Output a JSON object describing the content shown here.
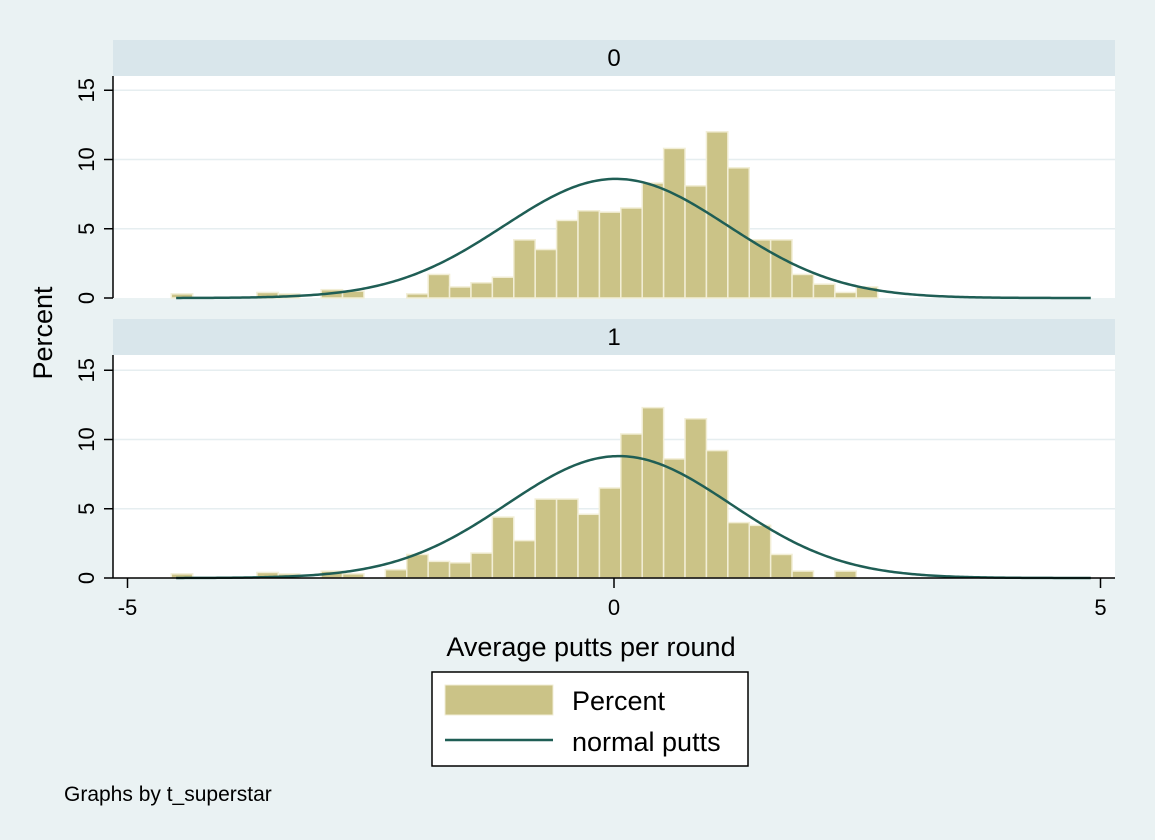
{
  "chart_data": {
    "type": "bar",
    "ylabel": "Percent",
    "xlabel": "Average putts per round",
    "note": "Graphs by t_superstar",
    "colors": {
      "bar_fill": "#cbc387",
      "bar_stroke": "#f2eed6",
      "curve": "#1f5e55",
      "strip": "#d9e6eb",
      "background": "#eaf2f3",
      "plot_bg": "#ffffff",
      "grid": "#e6eef0"
    },
    "xlim": [
      -5,
      5
    ],
    "ylim": [
      0,
      15
    ],
    "x_ticks": [
      -5,
      0,
      5
    ],
    "y_ticks": [
      0,
      5,
      10,
      15
    ],
    "bin_width": 0.22,
    "bin_start": -4.55,
    "legend": {
      "position": "bottom",
      "entries": [
        "Percent",
        "normal putts"
      ]
    },
    "panels": [
      {
        "label": "0",
        "percent": [
          0.3,
          0,
          0,
          0,
          0.4,
          0.3,
          0,
          0.6,
          0.5,
          0,
          0,
          0.3,
          1.7,
          0.8,
          1.1,
          1.5,
          4.2,
          3.5,
          5.6,
          6.3,
          6.2,
          6.5,
          8.3,
          10.8,
          8.1,
          12.0,
          9.4,
          4.2,
          4.2,
          1.7,
          1.0,
          0.4,
          0.8,
          0,
          0,
          0,
          0,
          0,
          0,
          0,
          0,
          0,
          0
        ],
        "normal": {
          "mean": 0.02,
          "sd": 1.15,
          "peak": 8.6
        }
      },
      {
        "label": "1",
        "percent": [
          0.3,
          0,
          0,
          0,
          0.4,
          0.3,
          0,
          0.5,
          0.3,
          0,
          0.6,
          1.7,
          1.2,
          1.1,
          1.8,
          4.4,
          2.7,
          5.7,
          5.7,
          4.6,
          6.5,
          10.4,
          12.3,
          8.6,
          11.5,
          9.2,
          4.0,
          3.8,
          1.7,
          0.5,
          0,
          0.5,
          0,
          0,
          0,
          0,
          0,
          0,
          0,
          0,
          0,
          0,
          0
        ],
        "normal": {
          "mean": 0.05,
          "sd": 1.15,
          "peak": 8.8
        }
      }
    ]
  }
}
